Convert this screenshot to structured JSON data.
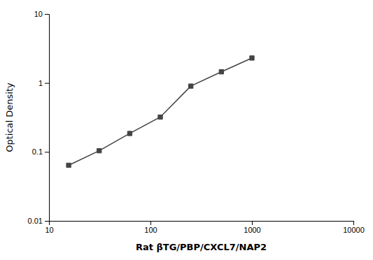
{
  "chart_data": {
    "type": "line",
    "x": [
      15.625,
      31.25,
      62.5,
      125,
      250,
      500,
      1000
    ],
    "values": [
      0.064,
      0.104,
      0.185,
      0.32,
      0.9,
      1.45,
      2.3
    ],
    "xlabel": "Rat βTG/PBP/CXCL7/NAP2",
    "ylabel": "Optical Density",
    "xlim": [
      10,
      10000
    ],
    "ylim": [
      0.01,
      10
    ],
    "xticks": [
      10,
      100,
      1000,
      10000
    ],
    "yticks": [
      0.01,
      0.1,
      1,
      10
    ],
    "log": true,
    "color": "#444444",
    "marker": "square"
  }
}
